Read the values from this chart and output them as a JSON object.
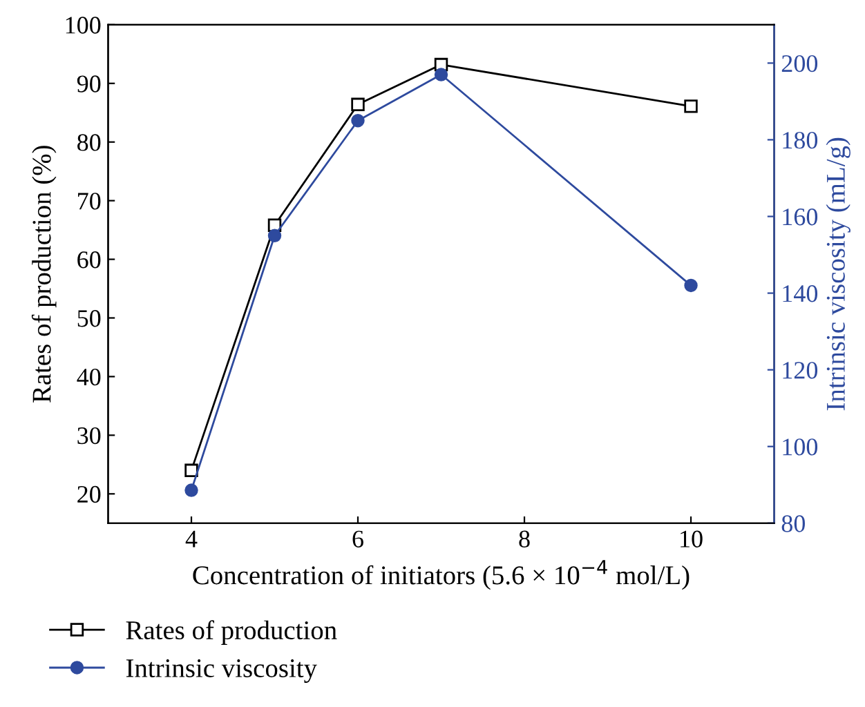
{
  "chart_data": {
    "type": "line",
    "xlabel": "Concentration of initiators (5.6 × 10$^{−4}$ mol/L)",
    "ylabel": "Rates of production (%)",
    "y2label": "Intrinsic viscosity (mL/g)",
    "x": [
      4,
      5,
      6,
      7,
      10
    ],
    "series": [
      {
        "name": "Rates of production",
        "color": "#000000",
        "marker": "square",
        "values": [
          24,
          65.8,
          86.4,
          93.2,
          86.1
        ]
      },
      {
        "name": "Intrinsic viscosity",
        "color": "#2e4a9e",
        "marker": "circle",
        "axis": "y2",
        "values": [
          88.6,
          155,
          185,
          197,
          142
        ]
      }
    ],
    "xlim": [
      3,
      11
    ],
    "xticks": [
      4,
      6,
      8,
      10
    ],
    "ylim": [
      15,
      100
    ],
    "yticks": [
      20,
      30,
      40,
      50,
      60,
      70,
      80,
      90,
      100
    ],
    "y2lim": [
      80,
      210
    ],
    "y2ticks": [
      80,
      100,
      120,
      140,
      160,
      180,
      200
    ],
    "legend": "bottom",
    "grid": false,
    "line_style": "solid"
  }
}
